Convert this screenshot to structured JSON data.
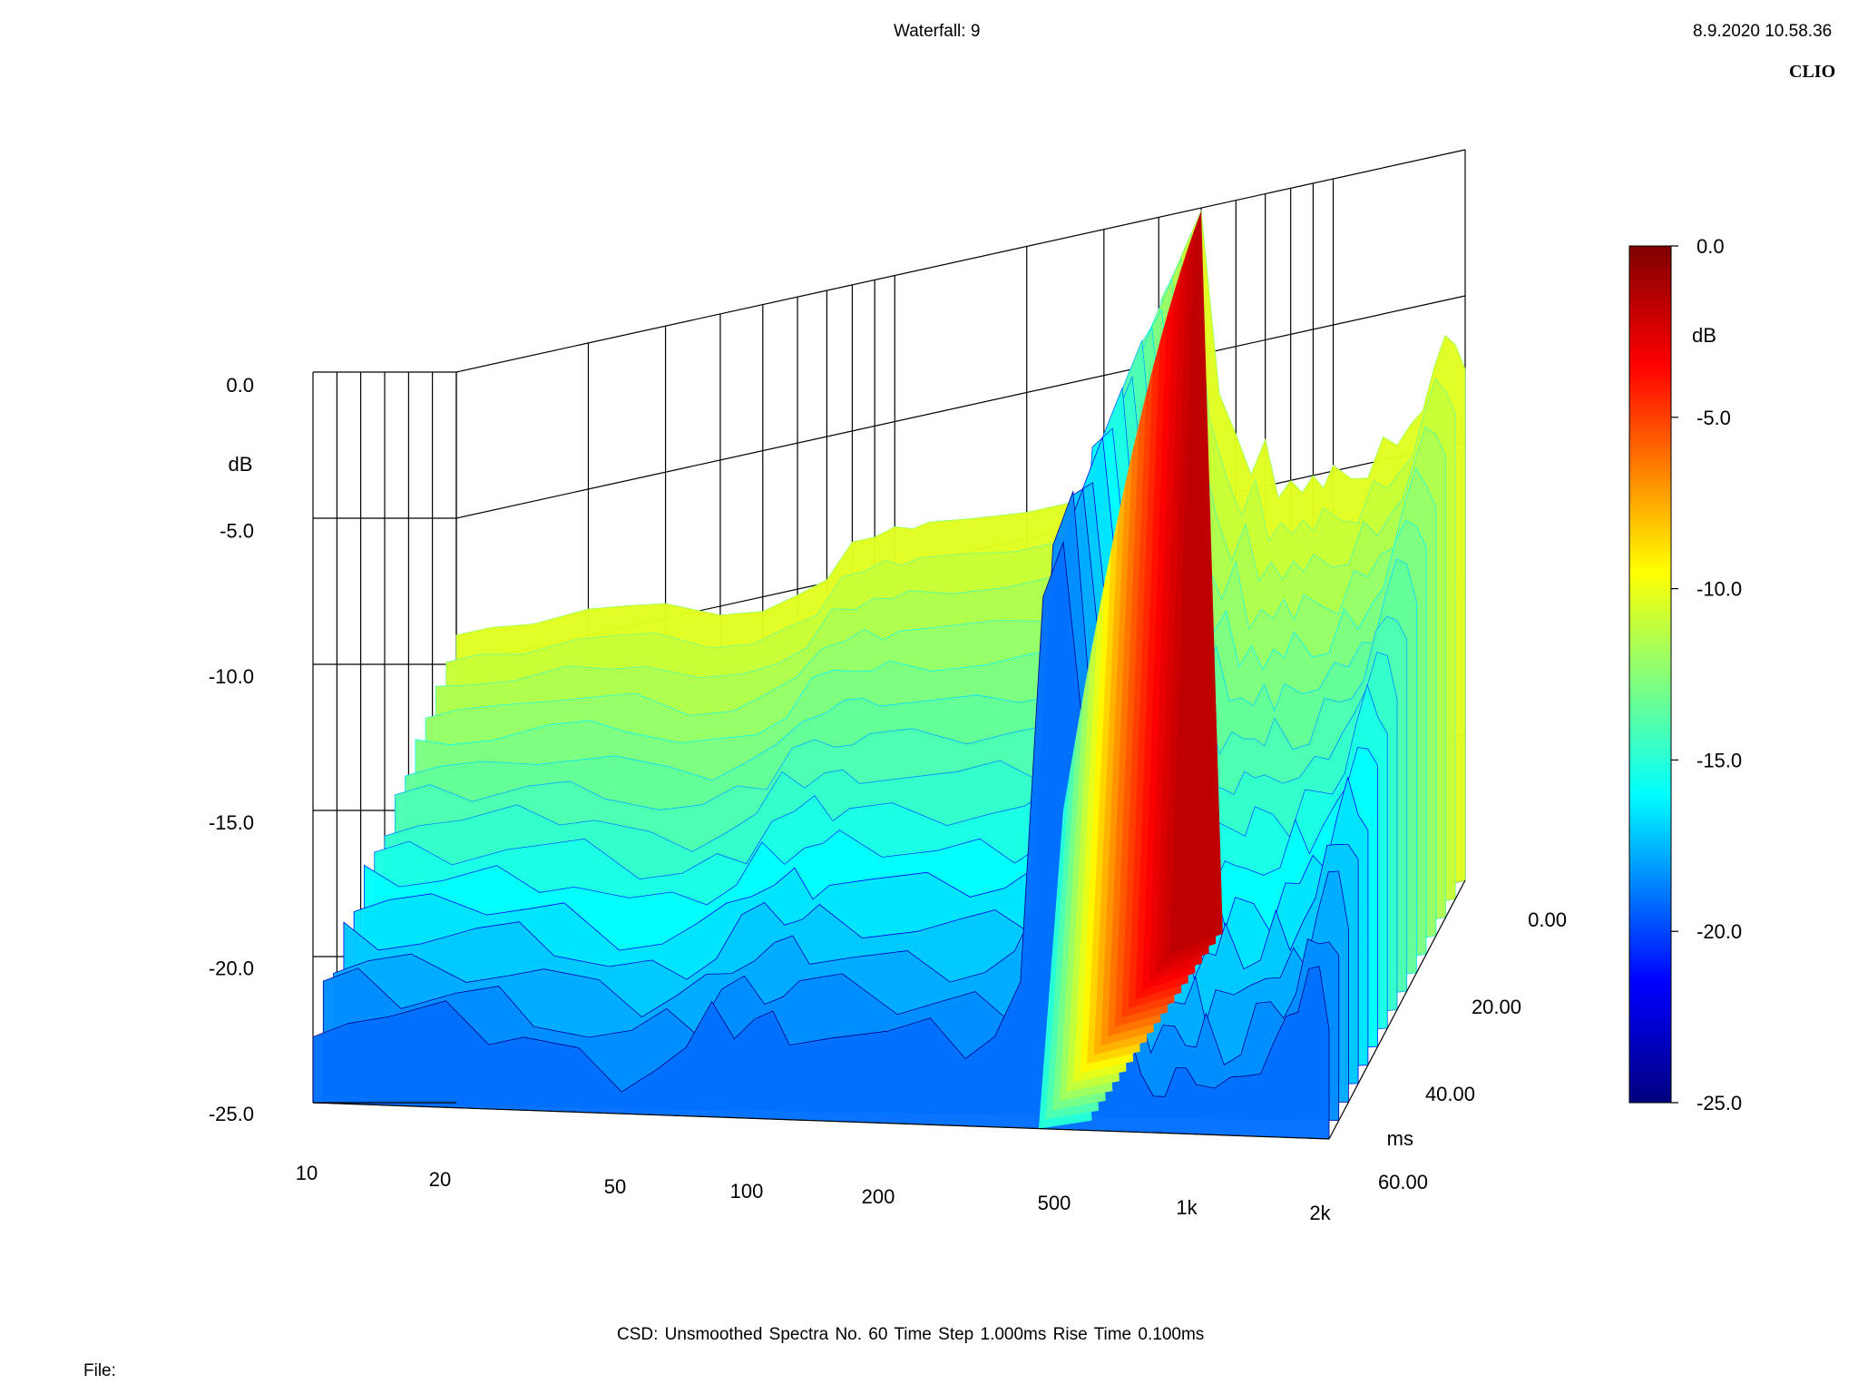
{
  "header": {
    "title": "Waterfall: 9",
    "timestamp": "8.9.2020 10.58.36",
    "brand": "CLIO"
  },
  "footer": {
    "info": "CSD:   Unsmoothed   Spectra No. 60   Time Step 1.000ms   Rise Time 0.100ms",
    "file_label": "File:"
  },
  "colors": {
    "grid": "#000000",
    "colormap": [
      "#00007f",
      "#0000ff",
      "#00ffff",
      "#ffff00",
      "#ff0000",
      "#7f0000"
    ]
  },
  "chart_data": {
    "type": "waterfall",
    "title": "Waterfall: 9",
    "x_axis": {
      "scale": "log",
      "range": [
        10,
        2000
      ],
      "tick_labels": [
        "10",
        "20",
        "50",
        "100",
        "200",
        "500",
        "1k",
        "2k"
      ],
      "tick_values": [
        10,
        20,
        50,
        100,
        200,
        500,
        1000,
        2000
      ]
    },
    "y_axis": {
      "unit": "dB",
      "range": [
        -25,
        0
      ],
      "tick_labels": [
        "0.0",
        "-5.0",
        "-10.0",
        "-15.0",
        "-20.0",
        "-25.0"
      ],
      "tick_values": [
        0,
        -5,
        -10,
        -15,
        -20,
        -25
      ]
    },
    "z_axis": {
      "unit": "ms",
      "range": [
        0,
        60
      ],
      "tick_labels": [
        "0.00",
        "20.00",
        "40.00",
        "60.00"
      ],
      "tick_values": [
        0,
        20,
        40,
        60
      ]
    },
    "colorbar": {
      "unit": "dB",
      "range": [
        -25,
        0
      ],
      "tick_labels": [
        "0.0",
        "-5.0",
        "-10.0",
        "-15.0",
        "-20.0",
        "-25.0"
      ],
      "tick_values": [
        0,
        -5,
        -10,
        -15,
        -20,
        -25
      ]
    },
    "front_slice": {
      "time_ms": 0,
      "freq_hz": [
        10,
        12,
        15,
        20,
        25,
        30,
        40,
        50,
        60,
        70,
        80,
        90,
        100,
        110,
        120,
        150,
        200,
        250,
        300,
        350,
        400,
        450,
        500,
        550,
        600,
        650,
        700,
        750,
        800,
        850,
        900,
        950,
        1000,
        1100,
        1200,
        1300,
        1400,
        1500,
        1600,
        1700,
        1800,
        1900,
        2000
      ],
      "level_db": [
        -9,
        -9,
        -9.2,
        -9.1,
        -9.3,
        -9.5,
        -10.3,
        -10.5,
        -10.2,
        -9.9,
        -8.8,
        -8.8,
        -8.6,
        -8.8,
        -8.7,
        -8.9,
        -9.1,
        -9.1,
        -9.2,
        -8.9,
        -7.5,
        -1.5,
        -0.1,
        -6.5,
        -8.0,
        -9.5,
        -8.4,
        -10.5,
        -10.0,
        -10.5,
        -10.0,
        -10.5,
        -9.8,
        -10.4,
        -10.5,
        -9.2,
        -9.6,
        -9.0,
        -8.6,
        -7.2,
        -6.2,
        -6.6,
        -7.5
      ]
    }
  }
}
